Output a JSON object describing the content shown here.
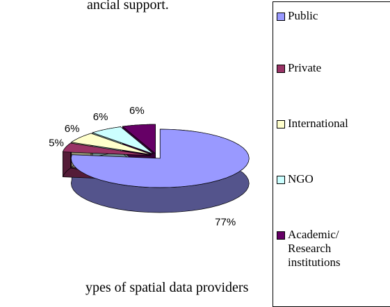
{
  "document": {
    "text_top": "ancial support.",
    "text_bottom": "ypes of spatial data providers"
  },
  "chart_data": {
    "type": "pie",
    "categories": [
      "Public",
      "Private",
      "International",
      "NGO",
      "Academic/ Research institutions"
    ],
    "values": [
      77,
      5,
      6,
      6,
      6
    ],
    "value_labels": [
      "77%",
      "5%",
      "6%",
      "6%",
      "6%"
    ],
    "colors": [
      "#9999ff",
      "#993366",
      "#ffffcc",
      "#ccffff",
      "#660066"
    ],
    "legend": "right"
  }
}
